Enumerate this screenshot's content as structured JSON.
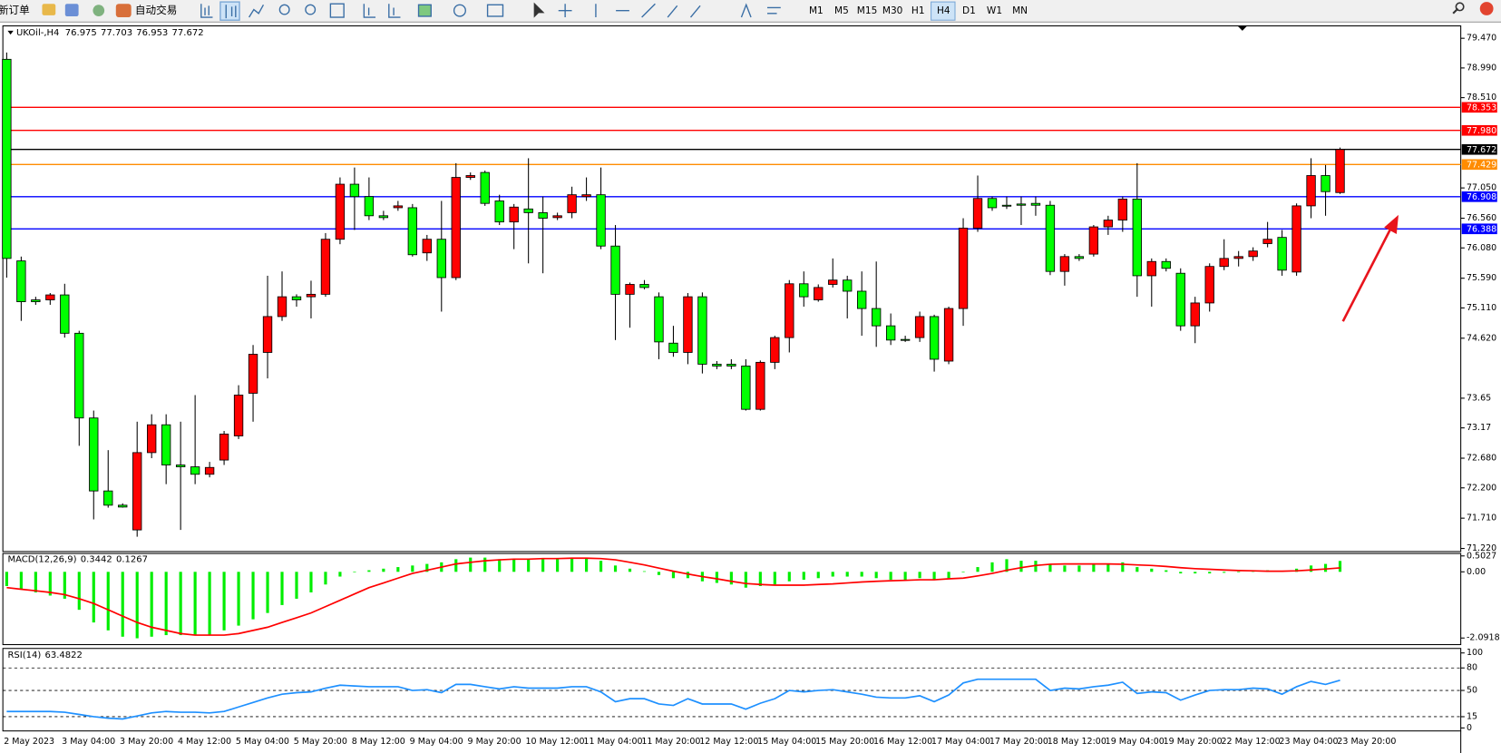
{
  "toolbar": {
    "buttons": [
      "新订单",
      "自动交易"
    ],
    "timeframes": [
      "M1",
      "M5",
      "M15",
      "M30",
      "H1",
      "H4",
      "D1",
      "W1",
      "MN"
    ],
    "active_timeframe": 5
  },
  "chart_data": [
    {
      "type": "candlestick",
      "title": "UKOil-,H4",
      "categories": [
        "2 May 2023",
        null,
        null,
        null,
        "3 May 04:00",
        null,
        null,
        null,
        "3 May 20:00",
        null,
        null,
        null,
        "4 May 12:00",
        null,
        null,
        null,
        "5 May 04:00",
        null,
        null,
        null,
        "5 May 20:00",
        null,
        null,
        null,
        "8 May 12:00",
        null,
        null,
        null,
        "9 May 04:00",
        null,
        null,
        null,
        "9 May 20:00",
        null,
        null,
        null,
        "10 May 12:00",
        null,
        null,
        null,
        "11 May 04:00",
        null,
        null,
        null,
        "11 May 20:00",
        null,
        null,
        null,
        "12 May 12:00",
        null,
        null,
        null,
        "15 May 04:00",
        null,
        null,
        null,
        "15 May 20:00",
        null,
        null,
        null,
        "16 May 12:00",
        null,
        null,
        null,
        "17 May 04:00",
        null,
        null,
        null,
        "17 May 20:00",
        null,
        null,
        null,
        "18 May 12:00",
        null,
        null,
        null,
        "19 May 04:00",
        null,
        null,
        null,
        "19 May 20:00",
        null,
        null,
        null,
        "22 May 12:00",
        null,
        null,
        null,
        "23 May 04:00",
        null,
        null,
        null,
        "23 May 20:00"
      ],
      "open": [
        79.13,
        75.87,
        75.24,
        75.24,
        75.32,
        74.7,
        73.33,
        72.15,
        71.92,
        71.52,
        72.77,
        73.22,
        72.57,
        72.54,
        72.42,
        72.65,
        73.04,
        73.73,
        74.39,
        74.97,
        75.29,
        75.29,
        75.33,
        76.22,
        77.11,
        76.91,
        76.6,
        76.73,
        76.73,
        76.0,
        76.22,
        75.6,
        77.22,
        77.3,
        76.84,
        76.5,
        76.71,
        76.65,
        76.57,
        76.65,
        76.91,
        76.94,
        76.11,
        75.33,
        75.49,
        75.29,
        74.54,
        74.39,
        75.29,
        74.2,
        74.2,
        74.17,
        73.47,
        74.23,
        74.63,
        75.5,
        75.24,
        75.49,
        75.56,
        75.38,
        75.1,
        74.82,
        74.6,
        74.63,
        74.97,
        74.25,
        75.1,
        76.4,
        76.88,
        76.77,
        76.79,
        76.8,
        76.77,
        75.7,
        75.94,
        75.98,
        76.42,
        76.53,
        76.87,
        75.63,
        75.86,
        75.67,
        74.82,
        75.19,
        75.78,
        75.91,
        75.94,
        76.15,
        76.25,
        75.69,
        76.76,
        77.25,
        76.975
      ],
      "high": [
        79.24,
        75.94,
        75.29,
        75.35,
        75.5,
        74.74,
        73.45,
        72.81,
        71.95,
        73.27,
        73.39,
        73.39,
        73.27,
        73.7,
        72.62,
        73.12,
        73.86,
        74.51,
        75.63,
        75.7,
        75.33,
        75.55,
        76.32,
        77.22,
        77.38,
        77.22,
        76.68,
        76.84,
        76.79,
        76.29,
        76.84,
        77.45,
        77.3,
        77.33,
        76.94,
        76.79,
        77.53,
        76.91,
        76.65,
        77.07,
        77.22,
        77.38,
        76.45,
        75.52,
        75.56,
        75.36,
        74.82,
        75.35,
        75.36,
        74.25,
        74.28,
        74.28,
        74.26,
        74.66,
        75.56,
        75.7,
        75.49,
        75.91,
        75.63,
        75.7,
        75.86,
        75.02,
        74.66,
        75.05,
        75.0,
        75.13,
        76.56,
        77.25,
        76.91,
        76.91,
        76.91,
        76.91,
        76.84,
        75.98,
        75.98,
        76.45,
        76.6,
        76.91,
        77.45,
        75.91,
        75.91,
        75.75,
        75.29,
        75.83,
        76.22,
        76.03,
        76.09,
        76.5,
        76.37,
        76.8,
        77.53,
        77.42,
        77.703
      ],
      "low": [
        75.6,
        74.9,
        75.16,
        75.16,
        74.63,
        72.88,
        71.69,
        71.88,
        71.88,
        71.41,
        72.68,
        72.26,
        71.52,
        72.26,
        72.37,
        72.57,
        72.99,
        73.27,
        73.97,
        74.9,
        75.13,
        74.94,
        75.29,
        76.14,
        76.37,
        76.53,
        76.53,
        76.68,
        75.94,
        75.87,
        75.05,
        75.56,
        77.18,
        76.76,
        76.45,
        76.06,
        75.83,
        75.67,
        76.53,
        76.56,
        76.84,
        76.06,
        74.59,
        74.79,
        75.41,
        74.28,
        74.32,
        74.2,
        74.05,
        74.12,
        74.12,
        73.45,
        73.45,
        74.12,
        74.39,
        75.13,
        75.21,
        75.44,
        74.94,
        74.66,
        74.48,
        74.51,
        74.56,
        74.56,
        74.08,
        74.2,
        74.82,
        76.34,
        76.68,
        76.71,
        76.45,
        76.6,
        75.64,
        75.47,
        75.87,
        75.94,
        76.29,
        76.34,
        75.29,
        75.13,
        75.7,
        74.74,
        74.54,
        75.05,
        75.72,
        75.78,
        75.87,
        76.09,
        75.63,
        75.63,
        76.56,
        76.6,
        76.953
      ],
      "close": [
        75.91,
        75.21,
        75.21,
        75.32,
        74.7,
        73.33,
        72.15,
        71.92,
        71.89,
        72.77,
        73.22,
        72.57,
        72.54,
        72.42,
        72.53,
        73.07,
        73.7,
        74.36,
        74.97,
        75.29,
        75.24,
        75.33,
        76.22,
        77.11,
        76.91,
        76.6,
        76.57,
        76.76,
        75.97,
        76.22,
        75.6,
        77.22,
        77.25,
        76.8,
        76.5,
        76.74,
        76.65,
        76.56,
        76.6,
        76.94,
        76.94,
        76.11,
        75.33,
        75.49,
        75.44,
        74.56,
        74.39,
        75.29,
        74.2,
        74.17,
        74.17,
        73.47,
        74.23,
        74.63,
        75.5,
        75.29,
        75.44,
        75.56,
        75.38,
        75.1,
        74.82,
        74.59,
        74.59,
        74.97,
        74.28,
        75.1,
        76.4,
        76.88,
        76.73,
        76.76,
        76.77,
        76.77,
        75.7,
        75.94,
        75.91,
        76.42,
        76.53,
        76.87,
        75.63,
        75.86,
        75.75,
        74.82,
        75.19,
        75.78,
        75.91,
        75.94,
        76.03,
        76.22,
        75.72,
        76.76,
        77.25,
        76.99,
        77.672
      ],
      "up_color": "#ff0000",
      "down_color": "#00ff00",
      "ylim": [
        71.17,
        79.67
      ],
      "yticks": [
        {
          "value": 79.47,
          "label": "79.470"
        },
        {
          "value": 78.99,
          "label": "78.990"
        },
        {
          "value": 78.51,
          "label": "78.510"
        },
        {
          "value": 77.05,
          "label": "77.050"
        },
        {
          "value": 76.56,
          "label": "76.560"
        },
        {
          "value": 76.08,
          "label": "76.080"
        },
        {
          "value": 75.59,
          "label": "75.590"
        },
        {
          "value": 75.11,
          "label": "75.110"
        },
        {
          "value": 74.62,
          "label": "74.620"
        },
        73.65,
        73.17,
        {
          "value": 72.68,
          "label": "72.680"
        },
        {
          "value": 72.2,
          "label": "72.200"
        },
        {
          "value": 71.71,
          "label": "71.710"
        },
        {
          "value": 71.22,
          "label": "71.220"
        }
      ],
      "hlines": [
        {
          "value": 78.353,
          "color": "#ff0000"
        },
        {
          "value": {
            "value": 77.98,
            "label": "77.980"
          },
          "color": "#ff0000"
        },
        {
          "value": 77.672,
          "color": "#000000"
        },
        {
          "value": 77.429,
          "color": "#ff8c00"
        },
        {
          "value": 76.908,
          "color": "#0000ff"
        },
        {
          "value": 76.388,
          "color": "#0000ff"
        }
      ]
    },
    {
      "type": "macd",
      "title": "MACD(12,26,9)",
      "series": [
        {
          "color": "#00ee00",
          "values": [
            -0.45,
            -0.55,
            -0.65,
            -0.75,
            -0.85,
            -1.2,
            -1.6,
            -1.85,
            -2.05,
            -2.1,
            -2.05,
            -2.0,
            -2.0,
            -2.0,
            -2.0,
            -1.85,
            -1.7,
            -1.5,
            -1.3,
            -1.05,
            -0.85,
            -0.65,
            -0.4,
            -0.15,
            0.0,
            0.05,
            0.1,
            0.15,
            0.2,
            0.25,
            0.3,
            0.4,
            0.45,
            0.45,
            0.4,
            0.4,
            0.4,
            0.4,
            0.4,
            0.45,
            0.45,
            0.35,
            0.2,
            0.1,
            0.02,
            -0.1,
            -0.2,
            -0.2,
            -0.3,
            -0.35,
            -0.4,
            -0.5,
            -0.45,
            -0.4,
            -0.3,
            -0.25,
            -0.2,
            -0.15,
            -0.15,
            -0.15,
            -0.2,
            -0.25,
            -0.25,
            -0.2,
            -0.25,
            -0.2,
            0.0,
            0.15,
            0.3,
            0.4,
            0.35,
            0.35,
            0.25,
            0.2,
            0.2,
            0.25,
            0.25,
            0.3,
            0.15,
            0.1,
            0.05,
            -0.05,
            -0.05,
            -0.05,
            -0.03,
            0.0,
            0.02,
            0.05,
            0.03,
            0.1,
            0.2,
            0.25,
            0.3442
          ]
        },
        {
          "color": "#ff0000",
          "values": [
            -0.5,
            -0.55,
            -0.6,
            -0.65,
            -0.72,
            -0.85,
            -1.0,
            -1.2,
            -1.4,
            -1.6,
            -1.75,
            -1.85,
            -1.95,
            -2.0,
            -2.0,
            -2.0,
            -1.95,
            -1.85,
            -1.75,
            -1.6,
            -1.45,
            -1.3,
            -1.1,
            -0.9,
            -0.7,
            -0.5,
            -0.35,
            -0.2,
            -0.05,
            0.05,
            0.15,
            0.25,
            0.3,
            0.35,
            0.38,
            0.4,
            0.4,
            0.42,
            0.42,
            0.43,
            0.43,
            0.42,
            0.38,
            0.3,
            0.22,
            0.12,
            0.02,
            -0.07,
            -0.15,
            -0.22,
            -0.3,
            -0.37,
            -0.4,
            -0.42,
            -0.42,
            -0.42,
            -0.4,
            -0.38,
            -0.35,
            -0.32,
            -0.3,
            -0.28,
            -0.27,
            -0.25,
            -0.25,
            -0.22,
            -0.2,
            -0.13,
            -0.05,
            0.05,
            0.13,
            0.2,
            0.24,
            0.25,
            0.25,
            0.25,
            0.25,
            0.24,
            0.22,
            0.2,
            0.17,
            0.13,
            0.1,
            0.08,
            0.06,
            0.04,
            0.03,
            0.02,
            0.02,
            0.03,
            0.06,
            0.09,
            0.1267
          ]
        }
      ],
      "ylim": [
        -2.3,
        0.58
      ],
      "yticks": [
        0.5027,
        {
          "value": 0,
          "label": "0.00"
        },
        -2.0918
      ]
    },
    {
      "type": "line",
      "title": "RSI(14)",
      "color": "#1e90ff",
      "values": [
        22,
        22,
        22,
        22,
        21,
        18,
        15,
        13,
        12,
        16,
        20,
        22,
        21,
        21,
        20,
        22,
        28,
        34,
        40,
        45,
        47,
        48,
        53,
        57,
        56,
        55,
        55,
        55,
        50,
        51,
        47,
        58,
        58,
        55,
        52,
        55,
        53,
        53,
        53,
        55,
        55,
        48,
        35,
        39,
        39,
        32,
        30,
        39,
        32,
        32,
        32,
        25,
        33,
        39,
        50,
        48,
        50,
        51,
        48,
        45,
        41,
        40,
        40,
        43,
        35,
        44,
        60,
        65,
        65,
        65,
        65,
        65,
        50,
        53,
        52,
        55,
        57,
        61,
        46,
        48,
        47,
        37,
        44,
        50,
        51,
        51,
        53,
        52,
        45,
        55,
        62,
        58,
        63.4822
      ],
      "ylim": [
        -4,
        106
      ],
      "yticks": [
        100,
        80,
        50,
        15,
        0
      ],
      "levels": [
        80,
        50,
        15
      ]
    }
  ]
}
